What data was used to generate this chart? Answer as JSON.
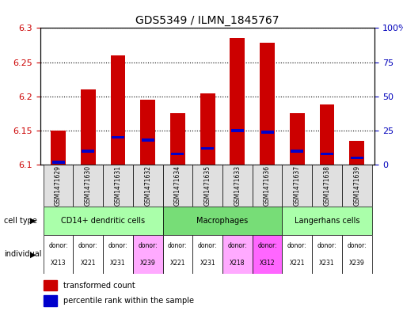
{
  "title": "GDS5349 / ILMN_1845767",
  "samples": [
    "GSM1471629",
    "GSM1471630",
    "GSM1471631",
    "GSM1471632",
    "GSM1471634",
    "GSM1471635",
    "GSM1471633",
    "GSM1471636",
    "GSM1471637",
    "GSM1471638",
    "GSM1471639"
  ],
  "red_values": [
    6.15,
    6.21,
    6.26,
    6.195,
    6.175,
    6.205,
    6.285,
    6.278,
    6.175,
    6.188,
    6.135
  ],
  "blue_percentiles": [
    2,
    10,
    20,
    18,
    8,
    12,
    25,
    24,
    10,
    8,
    5
  ],
  "ymin": 6.1,
  "ymax": 6.3,
  "yticks_left": [
    6.1,
    6.15,
    6.2,
    6.25,
    6.3
  ],
  "yticks_right_vals": [
    0,
    25,
    50,
    75,
    100
  ],
  "yticks_right_labels": [
    "0",
    "25",
    "50",
    "75",
    "100%"
  ],
  "cell_types": [
    {
      "label": "CD14+ dendritic cells",
      "start": 0,
      "end": 4,
      "color": "#aaffaa"
    },
    {
      "label": "Macrophages",
      "start": 4,
      "end": 8,
      "color": "#77dd77"
    },
    {
      "label": "Langerhans cells",
      "start": 8,
      "end": 11,
      "color": "#aaffaa"
    }
  ],
  "individuals": [
    {
      "donor": "X213",
      "color": "#ffffff",
      "idx": 0
    },
    {
      "donor": "X221",
      "color": "#ffffff",
      "idx": 1
    },
    {
      "donor": "X231",
      "color": "#ffffff",
      "idx": 2
    },
    {
      "donor": "X239",
      "color": "#ffaaff",
      "idx": 3
    },
    {
      "donor": "X221",
      "color": "#ffffff",
      "idx": 4
    },
    {
      "donor": "X231",
      "color": "#ffffff",
      "idx": 5
    },
    {
      "donor": "X218",
      "color": "#ffaaff",
      "idx": 6
    },
    {
      "donor": "X312",
      "color": "#ff66ff",
      "idx": 7
    },
    {
      "donor": "X221",
      "color": "#ffffff",
      "idx": 8
    },
    {
      "donor": "X231",
      "color": "#ffffff",
      "idx": 9
    },
    {
      "donor": "X239",
      "color": "#ffffff",
      "idx": 10
    }
  ],
  "bar_width": 0.5,
  "bar_color": "#cc0000",
  "blue_color": "#0000cc",
  "base": 6.1,
  "tick_color_left": "#cc0000",
  "tick_color_right": "#0000bb"
}
